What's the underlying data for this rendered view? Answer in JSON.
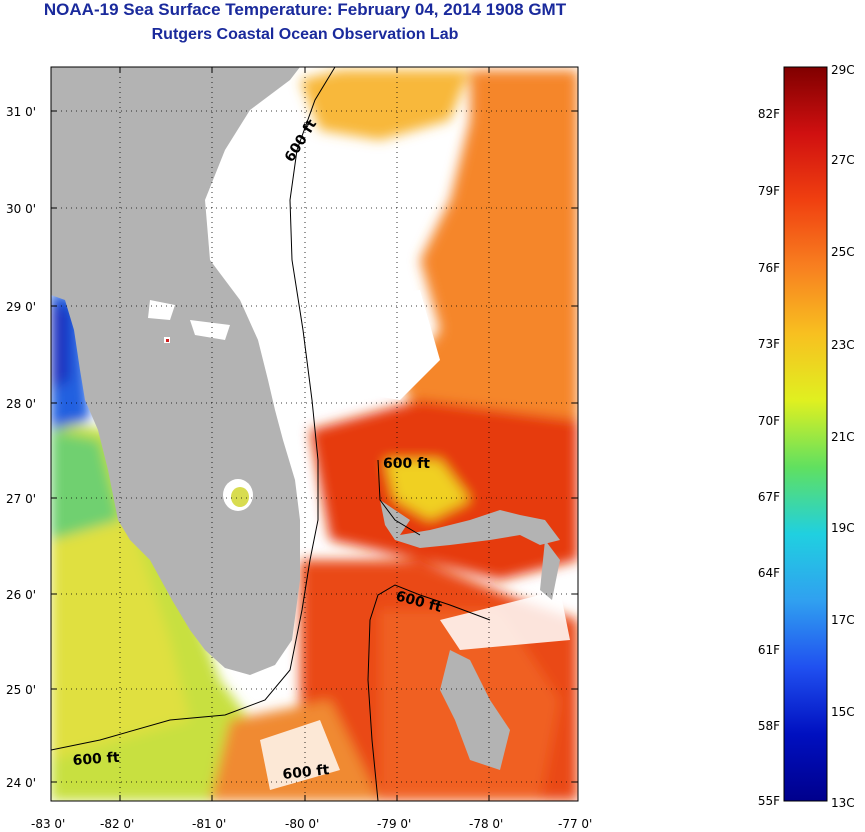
{
  "header": {
    "title": "NOAA-19 Sea Surface Temperature:  February 04, 2014 1908 GMT",
    "subtitle": "Rutgers Coastal Ocean Observation Lab"
  },
  "map": {
    "lat_ticks": [
      "24 0'",
      "25 0'",
      "26 0'",
      "27 0'",
      "28 0'",
      "29 0'",
      "30 0'",
      "31 0'"
    ],
    "lon_ticks": [
      "-83 0'",
      "-82 0'",
      "-81 0'",
      "-80 0'",
      "-79 0'",
      "-78 0'",
      "-77 0'"
    ],
    "contour_label": "600 ft",
    "colors": {
      "land": "#b3b3b3",
      "no_data": "#ffffff",
      "warm_gulfstream": "#e63a10",
      "orange_ocean": "#f5862a",
      "yellow_shelf": "#d8e04a",
      "cold_coast": "#1a3ad8"
    }
  },
  "colorbar": {
    "celsius_labels": [
      "29C",
      "27C",
      "25C",
      "23C",
      "21C",
      "19C",
      "17C",
      "15C",
      "13C"
    ],
    "fahrenheit_labels": [
      "82F",
      "79F",
      "76F",
      "73F",
      "70F",
      "67F",
      "64F",
      "61F",
      "58F",
      "55F"
    ],
    "gradient_stops": [
      "#800000",
      "#d01010",
      "#f04010",
      "#f88020",
      "#f8c020",
      "#e0f020",
      "#60e060",
      "#20d0e0",
      "#30a0f0",
      "#2050f0",
      "#0010c0",
      "#00008c"
    ]
  }
}
